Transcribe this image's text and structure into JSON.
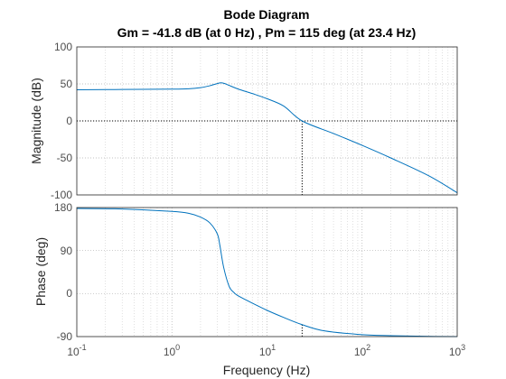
{
  "chart_data": [
    {
      "type": "line",
      "title": "Bode Diagram",
      "subtitle": "Gm = -41.8 dB (at 0 Hz) ,  Pm = 115 deg (at 23.4 Hz)",
      "xlabel": "",
      "ylabel": "Magnitude (dB)",
      "xscale": "log",
      "xlim": [
        0.1,
        1000
      ],
      "ylim": [
        -100,
        100
      ],
      "yticks": [
        "100",
        "50",
        "0",
        "-50",
        "-100"
      ],
      "grid": true,
      "reference_line_y": 0,
      "marker_x": 23.4,
      "series": [
        {
          "x": [
            0.1,
            0.3,
            1,
            1.5,
            2,
            2.5,
            3,
            3.3,
            3.6,
            4,
            5,
            7,
            10,
            15,
            23.4,
            50,
            100,
            200,
            500,
            1000
          ],
          "values": [
            42,
            42.5,
            43,
            43.5,
            45,
            47.5,
            50.5,
            51.5,
            50.5,
            48,
            43,
            37,
            30,
            20,
            0,
            -17,
            -33,
            -50,
            -74,
            -97
          ]
        }
      ]
    },
    {
      "type": "line",
      "xlabel": "Frequency  (Hz)",
      "ylabel": "Phase (deg)",
      "xscale": "log",
      "xlim": [
        0.1,
        1000
      ],
      "ylim": [
        -90,
        180
      ],
      "xticks": [
        "10",
        "10",
        "10",
        "10",
        "10"
      ],
      "xtick_exponents": [
        "-1",
        "0",
        "1",
        "2",
        "3"
      ],
      "yticks": [
        "180",
        "90",
        "0",
        "-90"
      ],
      "grid": true,
      "marker_x": 23.4,
      "series": [
        {
          "x": [
            0.1,
            0.3,
            1,
            1.5,
            2,
            2.5,
            3,
            3.2,
            3.5,
            4,
            4.5,
            5,
            7,
            10,
            15,
            23.4,
            40,
            100,
            200,
            500,
            1000
          ],
          "values": [
            178,
            177,
            172,
            168,
            160,
            148,
            125,
            100,
            55,
            15,
            2,
            -5,
            -20,
            -35,
            -50,
            -65,
            -78,
            -86,
            -88,
            -89.5,
            -90
          ]
        }
      ]
    }
  ]
}
